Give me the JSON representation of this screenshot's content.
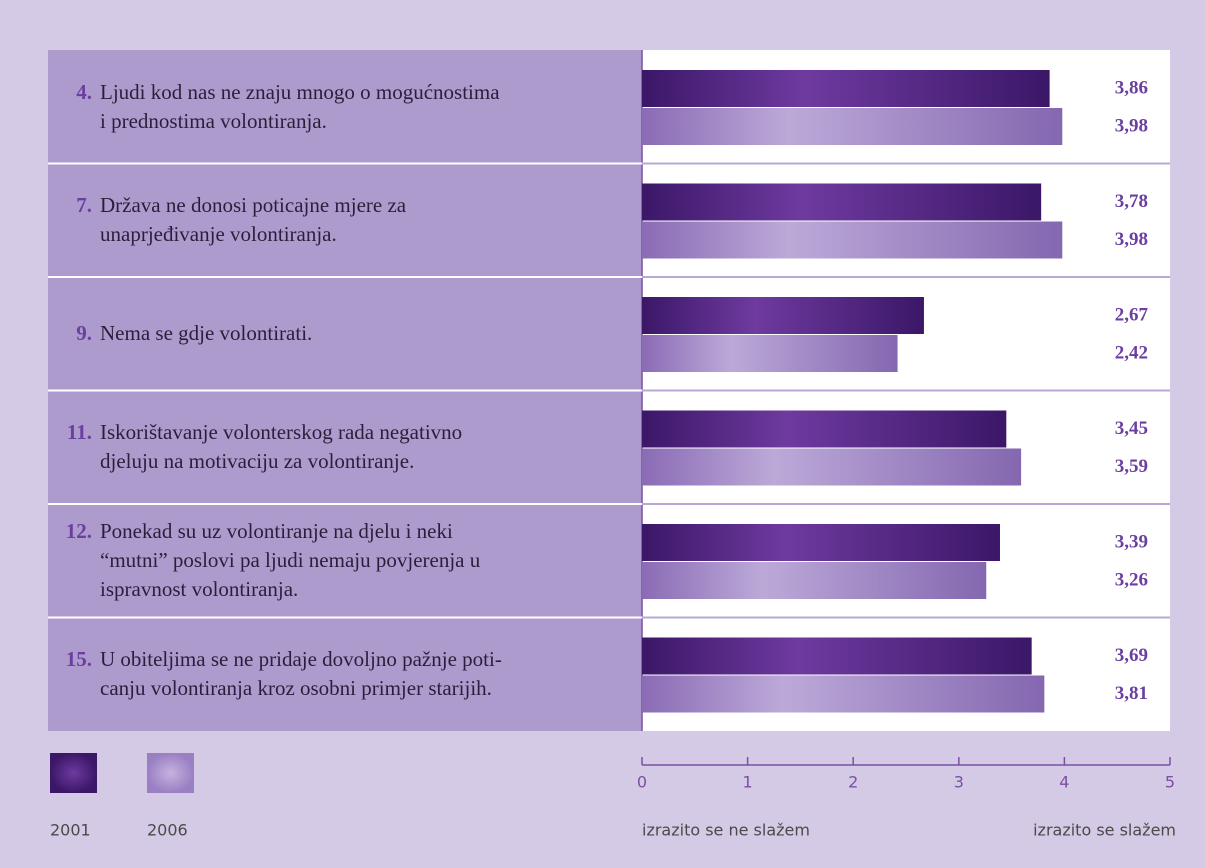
{
  "chart_data": {
    "type": "bar",
    "orientation": "horizontal",
    "item_numbers": [
      "4.",
      "7.",
      "9.",
      "11.",
      "12.",
      "15."
    ],
    "categories": [
      "Ljudi kod nas ne znaju mnogo o mogućnostima\ni  prednostima volontiranja.",
      "Država ne donosi poticajne mjere za\nunaprjeđivanje volontiranja.",
      "Nema se gdje volontirati.",
      "Iskorištavanje volonterskog rada negativno\ndjeluju na  motivaciju za volontiranje.",
      "Ponekad su uz volontiranje na djelu i neki\n“mutni” poslovi pa ljudi nemaju povjerenja u\nispravnost volontiranja.",
      "U obiteljima se ne pridaje dovoljno pažnje poti-\ncanju  volontiranja kroz osobni primjer starijih."
    ],
    "series": [
      {
        "name": "2001",
        "color": "#4a2178",
        "values": [
          3.86,
          3.78,
          2.67,
          3.45,
          3.39,
          3.69
        ],
        "value_labels": [
          "3,86",
          "3,78",
          "2,67",
          "3,45",
          "3,39",
          "3,69"
        ]
      },
      {
        "name": "2006",
        "color": "#a68dcb",
        "values": [
          3.98,
          3.98,
          2.42,
          3.59,
          3.26,
          3.81
        ],
        "value_labels": [
          "3,98",
          "3,98",
          "2,42",
          "3,59",
          "3,26",
          "3,81"
        ]
      }
    ],
    "xlim": [
      0,
      5
    ],
    "xticks": [
      0,
      1,
      2,
      3,
      4,
      5
    ],
    "xlabel_left": "izrazito se ne slažem",
    "xlabel_right": "izrazito se slažem"
  }
}
